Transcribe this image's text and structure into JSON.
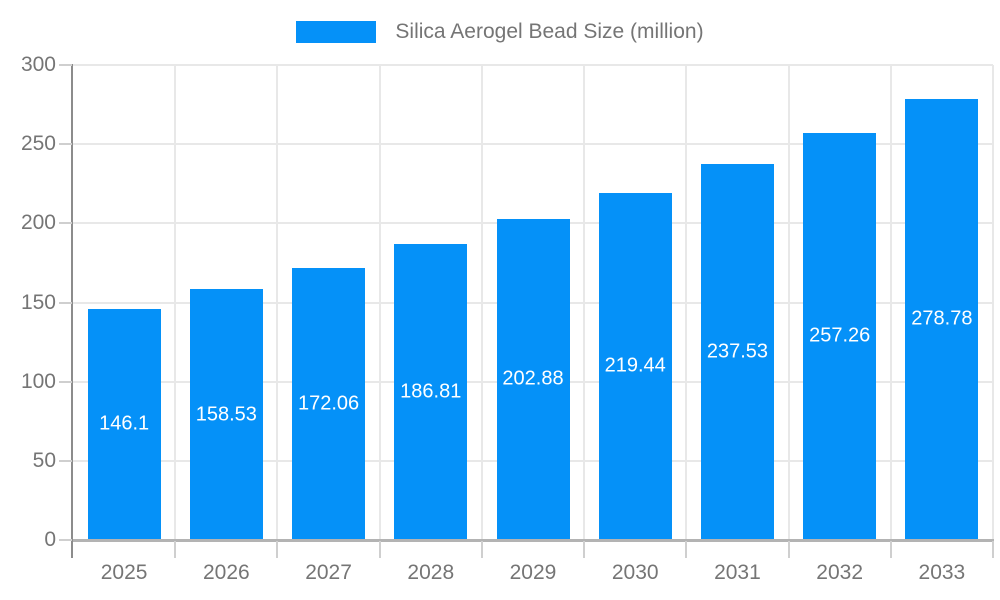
{
  "legend": {
    "label": "Silica Aerogel Bead Size (million)"
  },
  "chart_data": {
    "type": "bar",
    "title": "Silica Aerogel Bead Size (million)",
    "categories": [
      "2025",
      "2026",
      "2027",
      "2028",
      "2029",
      "2030",
      "2031",
      "2032",
      "2033"
    ],
    "values": [
      146.1,
      158.53,
      172.06,
      186.81,
      202.88,
      219.44,
      237.53,
      257.26,
      278.78
    ],
    "value_labels": [
      "146.1",
      "158.53",
      "172.06",
      "186.81",
      "202.88",
      "219.44",
      "237.53",
      "257.26",
      "278.78"
    ],
    "xlabel": "",
    "ylabel": "",
    "ylim": [
      0,
      300
    ],
    "yticks": [
      0,
      50,
      100,
      150,
      200,
      250,
      300
    ],
    "grid": true,
    "legend_position": "top",
    "colors": {
      "bar": "#0591f8",
      "value_label": "#ffffff",
      "axis_text": "#757575",
      "grid_line": "#e8e8e8",
      "axis_line": "#8c8c8c",
      "baseline": "#b3b3b3",
      "tick": "#cfcfcf"
    }
  }
}
